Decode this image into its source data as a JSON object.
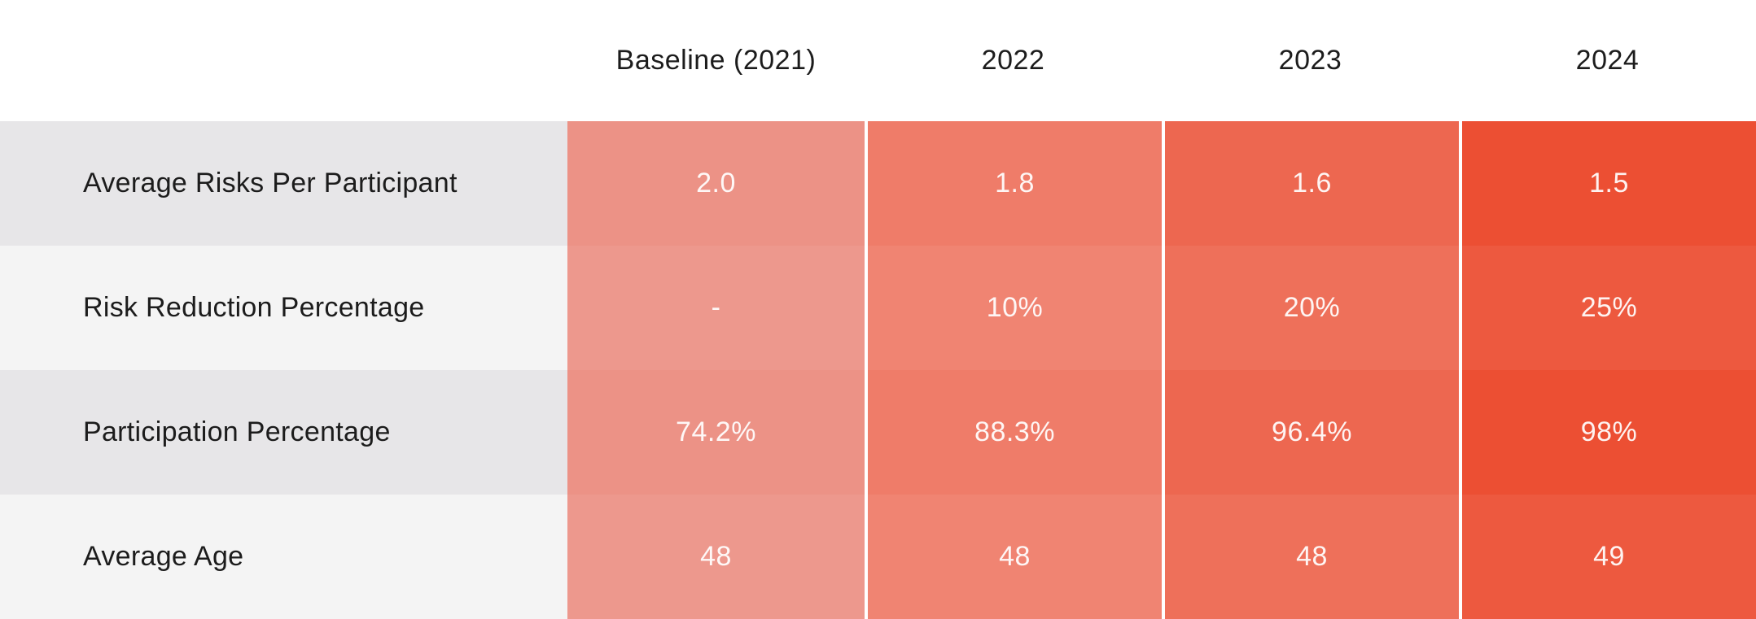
{
  "table": {
    "columns": [
      "Baseline (2021)",
      "2022",
      "2023",
      "2024"
    ],
    "column_colors": [
      "#ec9286",
      "#ef7c69",
      "#ed6750",
      "#ec4f33"
    ],
    "row_stripe_colors": [
      "#e7e6e8",
      "#f4f4f4"
    ],
    "label_text_color": "#1c1c1c",
    "value_text_color": "#ffffff",
    "separator_color": "#ffffff",
    "rows": [
      {
        "label": "Average Risks Per Participant",
        "values": [
          "2.0",
          "1.8",
          "1.6",
          "1.5"
        ]
      },
      {
        "label": "Risk Reduction Percentage",
        "values": [
          "-",
          "10%",
          "20%",
          "25%"
        ]
      },
      {
        "label": "Participation Percentage",
        "values": [
          "74.2%",
          "88.3%",
          "96.4%",
          "98%"
        ]
      },
      {
        "label": "Average Age",
        "values": [
          "48",
          "48",
          "48",
          "49"
        ]
      }
    ]
  },
  "chart_data": {
    "type": "table",
    "title": "",
    "categories": [
      "Baseline (2021)",
      "2022",
      "2023",
      "2024"
    ],
    "series": [
      {
        "name": "Average Risks Per Participant",
        "values": [
          2.0,
          1.8,
          1.6,
          1.5
        ]
      },
      {
        "name": "Risk Reduction Percentage",
        "values": [
          null,
          10,
          20,
          25
        ],
        "unit": "%"
      },
      {
        "name": "Participation Percentage",
        "values": [
          74.2,
          88.3,
          96.4,
          98
        ],
        "unit": "%"
      },
      {
        "name": "Average Age",
        "values": [
          48,
          48,
          48,
          49
        ]
      }
    ],
    "layout_hints": {
      "heat_gradient": [
        "#ec9286",
        "#ef7c69",
        "#ed6750",
        "#ec4f33"
      ],
      "heat_direction": "intensity increases left to right by column",
      "row_label_column": "left, gray striped",
      "gridlines": "white vertical separators between year columns"
    }
  }
}
